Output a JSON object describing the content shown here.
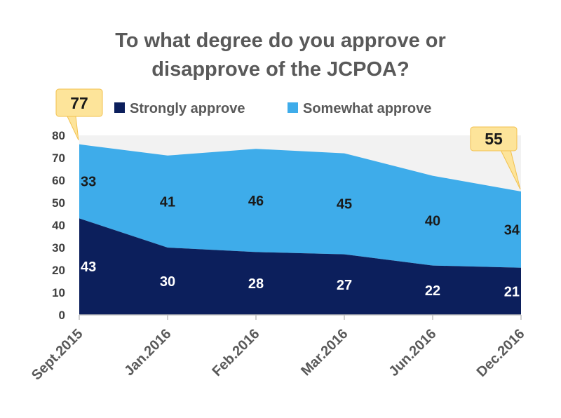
{
  "chart_data": {
    "type": "area",
    "title_line1": "To what degree do you approve or",
    "title_line2": "disapprove of the JCPOA?",
    "categories": [
      "Sept.2015",
      "Jan.2016",
      "Feb.2016",
      "Mar.2016",
      "Jun.2016",
      "Dec.2016"
    ],
    "series": [
      {
        "name": "Strongly approve",
        "values": [
          43,
          30,
          28,
          27,
          22,
          21
        ],
        "color": "#0c1f5c"
      },
      {
        "name": "Somewhat approve",
        "values": [
          33,
          41,
          46,
          45,
          40,
          34
        ],
        "color": "#3eacea"
      }
    ],
    "totals_shown": {
      "first": "77",
      "last": "55"
    },
    "ylim": [
      0,
      80
    ],
    "yticks": [
      0,
      10,
      20,
      30,
      40,
      50,
      60,
      70,
      80
    ],
    "stacked": true,
    "legend_position": "top",
    "grid": false,
    "callout_color": "#fde49a"
  }
}
